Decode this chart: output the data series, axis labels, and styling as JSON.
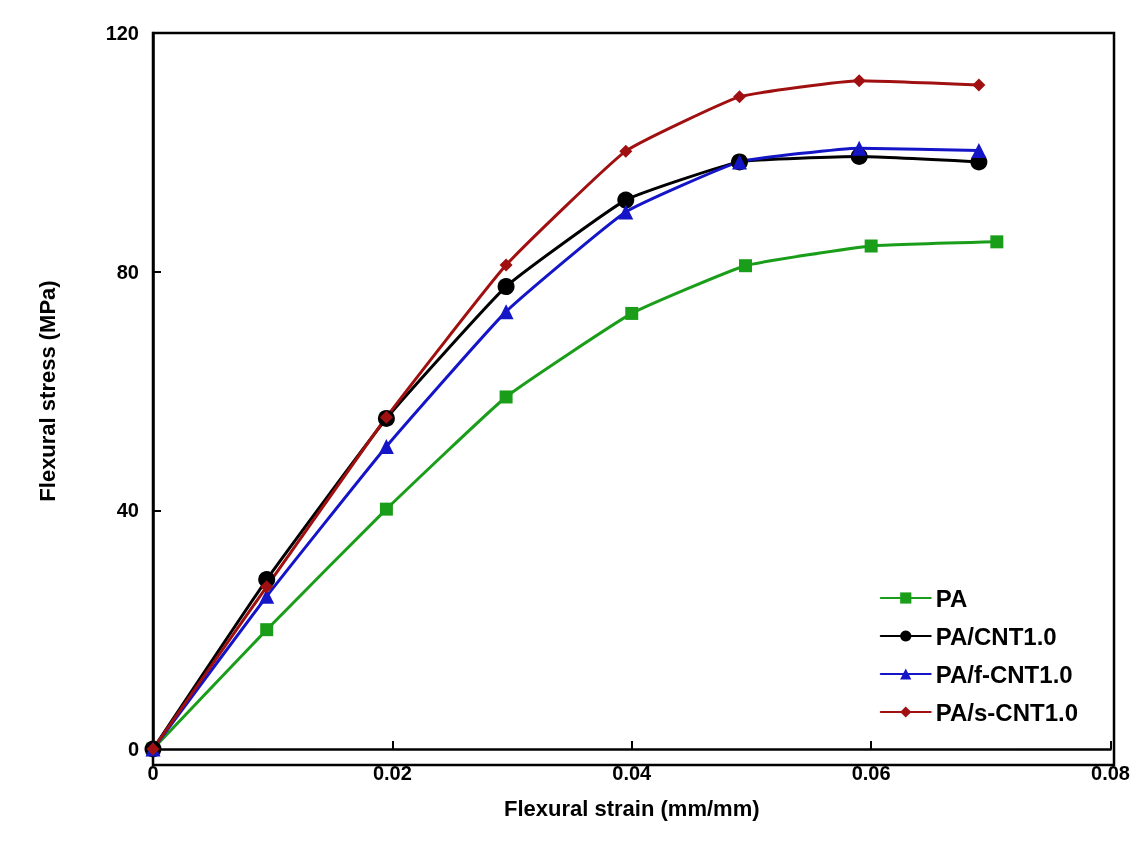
{
  "chart_data": {
    "type": "line",
    "xlabel": "Flexural strain (mm/mm)",
    "ylabel": "Flexural stress (MPa)",
    "xlim": [
      0,
      0.08
    ],
    "xticks": [
      0,
      0.02,
      0.04,
      0.06,
      0.08
    ],
    "ylim": [
      0,
      120
    ],
    "yticks": [
      0,
      40,
      80,
      120
    ],
    "grid": false,
    "legend": "bottom right",
    "series": [
      {
        "name": "PA",
        "color": "#1a9e1a",
        "marker": "square",
        "x": [
          0,
          0.0095,
          0.0195,
          0.0295,
          0.04,
          0.0495,
          0.06,
          0.0705
        ],
        "values": [
          0,
          20,
          40.2,
          59,
          73,
          81,
          84.3,
          85
        ]
      },
      {
        "name": "PA/CNT1.0",
        "color": "#000000",
        "marker": "circle",
        "x": [
          0,
          0.0095,
          0.0195,
          0.0295,
          0.0395,
          0.049,
          0.059,
          0.069
        ],
        "values": [
          0,
          28.4,
          55.4,
          77.5,
          92,
          98.4,
          99.3,
          98.4
        ]
      },
      {
        "name": "PA/f-CNT1.0",
        "color": "#1515c8",
        "marker": "triangle",
        "x": [
          0,
          0.0095,
          0.0195,
          0.0295,
          0.0395,
          0.049,
          0.059,
          0.069
        ],
        "values": [
          0,
          25.6,
          50.7,
          73.3,
          90,
          98.4,
          100.7,
          100.3
        ]
      },
      {
        "name": "PA/s-CNT1.0",
        "color": "#a01010",
        "marker": "diamond",
        "x": [
          0,
          0.0095,
          0.0195,
          0.0295,
          0.0395,
          0.049,
          0.059,
          0.069
        ],
        "values": [
          0,
          27.2,
          55.6,
          81.1,
          100.2,
          109.3,
          112,
          111.3
        ]
      }
    ]
  }
}
